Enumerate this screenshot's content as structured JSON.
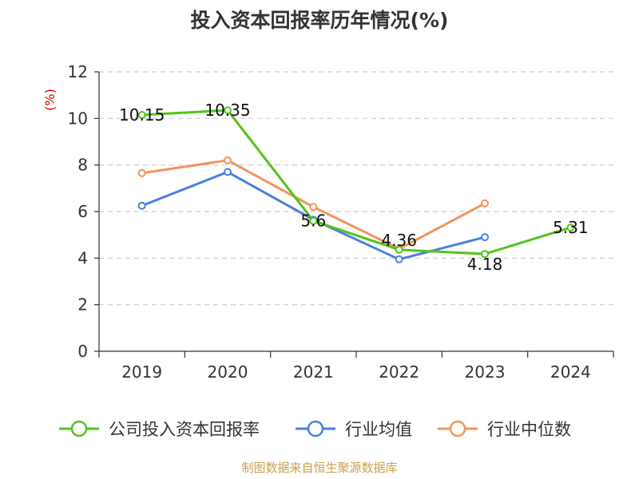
{
  "chart_data": {
    "type": "line",
    "title": "投入资本回报率历年情况(%)",
    "xlabel": "",
    "ylabel": "(%)",
    "categories": [
      "2019",
      "2020",
      "2021",
      "2022",
      "2023",
      "2024"
    ],
    "ylim": [
      0,
      12
    ],
    "yticks": [
      0,
      2,
      4,
      6,
      8,
      10,
      12
    ],
    "grid": true,
    "legend_position": "bottom",
    "series": [
      {
        "name": "公司投入资本回报率",
        "color": "#52c41a",
        "values": [
          10.15,
          10.35,
          5.6,
          4.36,
          4.18,
          5.31
        ],
        "labels": [
          "10.15",
          "10.35",
          "5.6",
          "4.36",
          "4.18",
          "5.31"
        ]
      },
      {
        "name": "行业均值",
        "color": "#4a7fe0",
        "values": [
          6.25,
          7.7,
          5.65,
          3.95,
          4.9,
          null
        ]
      },
      {
        "name": "行业中位数",
        "color": "#f5935a",
        "values": [
          7.65,
          8.2,
          6.2,
          4.4,
          6.35,
          null
        ]
      }
    ]
  },
  "source": "制图数据来自恒生聚源数据库",
  "colors": {
    "ylabel": "#cc0000",
    "source": "#c8a050",
    "axis": "#333333",
    "grid": "#cccccc"
  }
}
